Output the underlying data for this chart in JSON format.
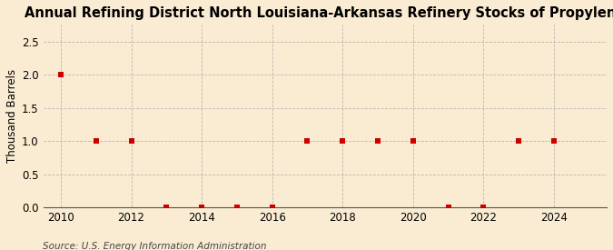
{
  "title": "Annual Refining District North Louisiana-Arkansas Refinery Stocks of Propylene",
  "ylabel": "Thousand Barrels",
  "source": "Source: U.S. Energy Information Administration",
  "background_color": "#faecd2",
  "years": [
    2010,
    2011,
    2012,
    2013,
    2014,
    2015,
    2016,
    2017,
    2018,
    2019,
    2020,
    2021,
    2022,
    2023,
    2024
  ],
  "values": [
    2.0,
    1.0,
    1.0,
    0.0,
    0.0,
    0.0,
    0.0,
    1.0,
    1.0,
    1.0,
    1.0,
    0.0,
    0.0,
    1.0,
    1.0
  ],
  "marker_color": "#cc0000",
  "marker_size": 4,
  "xlim": [
    2009.5,
    2025.5
  ],
  "ylim": [
    0.0,
    2.75
  ],
  "yticks": [
    0.0,
    0.5,
    1.0,
    1.5,
    2.0,
    2.5
  ],
  "xticks": [
    2010,
    2012,
    2014,
    2016,
    2018,
    2020,
    2022,
    2024
  ],
  "grid_color": "#aaaaaa",
  "title_fontsize": 10.5,
  "axis_fontsize": 8.5,
  "source_fontsize": 7.5
}
